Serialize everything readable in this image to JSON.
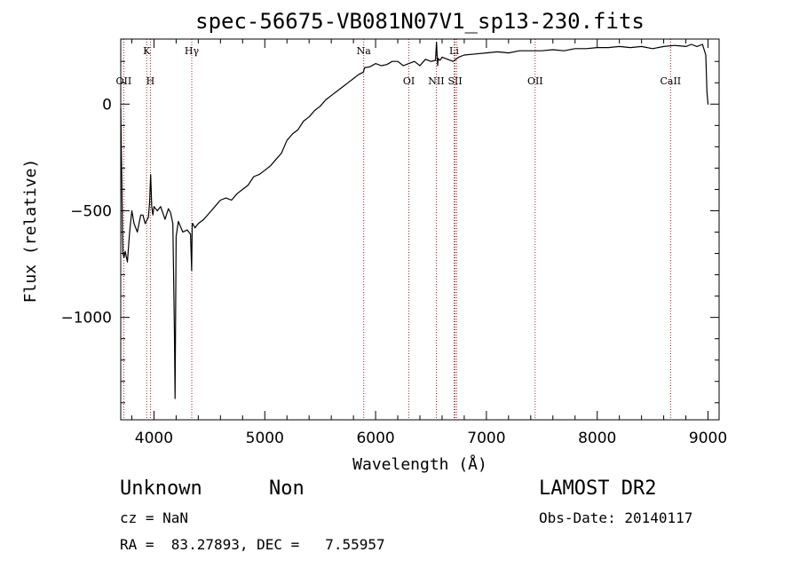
{
  "chart_data": {
    "type": "line",
    "title": "spec-56675-VB081N07V1_sp13-230.fits",
    "xlabel": "Wavelength (Å)",
    "ylabel": "Flux (relative)",
    "xlim": [
      3700,
      9100
    ],
    "ylim": [
      -1480,
      305
    ],
    "xticks": [
      4000,
      5000,
      6000,
      7000,
      8000,
      9000
    ],
    "yticks": [
      0,
      -500,
      -1000
    ],
    "grid": false,
    "color": "#000000",
    "line_color": "#aa2222",
    "lines": [
      {
        "label": "OII",
        "x": 3727,
        "row": "lower"
      },
      {
        "label": "K",
        "x": 3934,
        "row": "upper"
      },
      {
        "label": "H",
        "x": 3968,
        "row": "lower"
      },
      {
        "label": "Hγ",
        "x": 4341,
        "row": "upper"
      },
      {
        "label": "Na",
        "x": 5893,
        "row": "upper"
      },
      {
        "label": "OI",
        "x": 6300,
        "row": "lower"
      },
      {
        "label": "NII",
        "x": 6548,
        "row": "lower"
      },
      {
        "label": "Li",
        "x": 6708,
        "row": "upper"
      },
      {
        "label": "SII",
        "x": 6717,
        "row": "lower"
      },
      {
        "label": "SII",
        "x": 6731,
        "row": "hidden"
      },
      {
        "label": "OII",
        "x": 7440,
        "row": "lower"
      },
      {
        "label": "CaII",
        "x": 8662,
        "row": "lower"
      }
    ],
    "series": [
      {
        "x": [
          3700,
          3705,
          3710,
          3715,
          3720,
          3730,
          3740,
          3760,
          3780,
          3800,
          3820,
          3850,
          3880,
          3900,
          3920,
          3950,
          3960,
          3970,
          3980,
          3990,
          4000,
          4030,
          4060,
          4100,
          4130,
          4150,
          4170,
          4180,
          4185,
          4190,
          4200,
          4220,
          4260,
          4300,
          4330,
          4340,
          4345,
          4350,
          4370,
          4400,
          4450,
          4500,
          4550,
          4600,
          4650,
          4700,
          4750,
          4800,
          4850,
          4900,
          4950,
          5000,
          5050,
          5100,
          5150,
          5200,
          5250,
          5300,
          5350,
          5400,
          5450,
          5500,
          5550,
          5600,
          5650,
          5700,
          5750,
          5800,
          5850,
          5890,
          5900,
          5950,
          6000,
          6050,
          6100,
          6150,
          6200,
          6250,
          6300,
          6350,
          6400,
          6450,
          6500,
          6540,
          6550,
          6560,
          6565,
          6570,
          6580,
          6600,
          6650,
          6700,
          6750,
          6800,
          6900,
          7000,
          7100,
          7200,
          7300,
          7400,
          7500,
          7600,
          7700,
          7800,
          7900,
          8000,
          8100,
          8200,
          8300,
          8400,
          8500,
          8600,
          8700,
          8800,
          8850,
          8900,
          8950,
          8980,
          8990,
          9000,
          9005
        ],
        "y": [
          -20,
          -200,
          -350,
          -600,
          -700,
          -720,
          -690,
          -740,
          -600,
          -500,
          -560,
          -600,
          -520,
          -520,
          -560,
          -530,
          -460,
          -330,
          -480,
          -520,
          -480,
          -500,
          -480,
          -540,
          -490,
          -510,
          -560,
          -900,
          -1080,
          -1380,
          -620,
          -550,
          -600,
          -590,
          -610,
          -780,
          -560,
          -560,
          -580,
          -560,
          -540,
          -510,
          -480,
          -450,
          -440,
          -450,
          -420,
          -400,
          -380,
          -340,
          -330,
          -310,
          -290,
          -260,
          -230,
          -170,
          -140,
          -120,
          -80,
          -60,
          -30,
          -10,
          20,
          40,
          60,
          80,
          100,
          120,
          140,
          150,
          170,
          175,
          190,
          180,
          185,
          200,
          200,
          180,
          190,
          200,
          180,
          210,
          200,
          205,
          290,
          180,
          215,
          210,
          205,
          220,
          210,
          200,
          220,
          230,
          235,
          240,
          245,
          240,
          250,
          250,
          250,
          255,
          250,
          260,
          260,
          265,
          265,
          270,
          265,
          270,
          260,
          270,
          275,
          270,
          280,
          270,
          280,
          230,
          60,
          0,
          0
        ]
      }
    ]
  },
  "info": {
    "object_class": "Unknown",
    "subclass": "Non",
    "cz": "cz = NaN",
    "radec": "RA =  83.27893, DEC =   7.55957",
    "survey": "LAMOST DR2",
    "obs_date": "Obs-Date: 20140117"
  }
}
